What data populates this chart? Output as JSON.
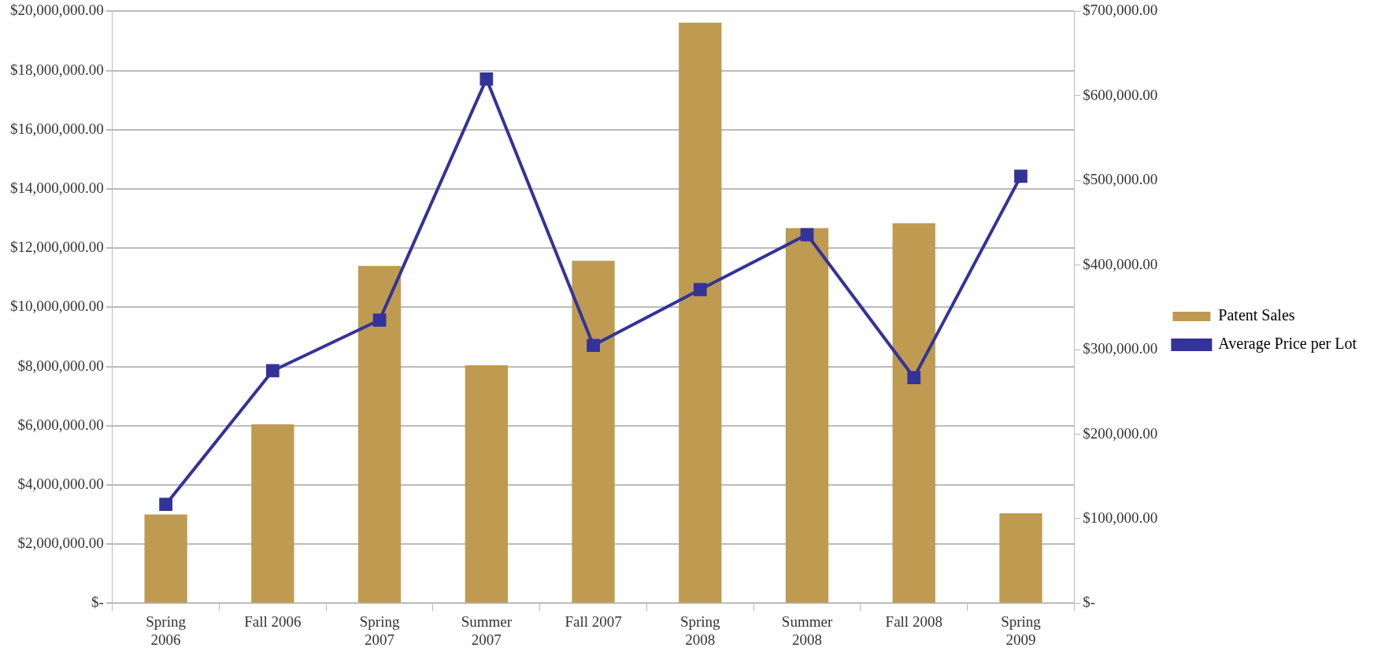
{
  "chart_data": {
    "type": "bar",
    "categories": [
      "Spring 2006",
      "Fall 2006",
      "Spring 2007",
      "Summer 2007",
      "Fall 2007",
      "Spring 2008",
      "Summer 2008",
      "Fall 2008",
      "Spring 2009"
    ],
    "series": [
      {
        "name": "Patent Sales",
        "color": "#be9b51",
        "values": [
          3000000,
          6050000,
          11400000,
          8040000,
          11570000,
          19620000,
          12680000,
          12840000,
          3040000
        ]
      },
      {
        "name": "Average Price per Lot",
        "type": "line",
        "axis": "y2",
        "color": "#333399",
        "marker": "square",
        "values": [
          117000,
          275000,
          335000,
          620000,
          305000,
          371000,
          436000,
          267000,
          505000
        ]
      }
    ],
    "ylim": [
      0,
      20000000
    ],
    "yticks": [
      {
        "value": 0,
        "label": "$-"
      },
      {
        "value": 2000000,
        "label": "$2,000,000.00"
      },
      {
        "value": 4000000,
        "label": "$4,000,000.00"
      },
      {
        "value": 6000000,
        "label": "$6,000,000.00"
      },
      {
        "value": 8000000,
        "label": "$8,000,000.00"
      },
      {
        "value": 10000000,
        "label": "$10,000,000.00"
      },
      {
        "value": 12000000,
        "label": "$12,000,000.00"
      },
      {
        "value": 14000000,
        "label": "$14,000,000.00"
      },
      {
        "value": 16000000,
        "label": "$16,000,000.00"
      },
      {
        "value": 18000000,
        "label": "$18,000,000.00"
      },
      {
        "value": 20000000,
        "label": "$20,000,000.00"
      }
    ],
    "y2lim": [
      0,
      700000
    ],
    "y2ticks": [
      {
        "value": 0,
        "label": "$-"
      },
      {
        "value": 100000,
        "label": "$100,000.00"
      },
      {
        "value": 200000,
        "label": "$200,000.00"
      },
      {
        "value": 300000,
        "label": "$300,000.00"
      },
      {
        "value": 400000,
        "label": "$400,000.00"
      },
      {
        "value": 500000,
        "label": "$500,000.00"
      },
      {
        "value": 600000,
        "label": "$600,000.00"
      },
      {
        "value": 700000,
        "label": "$700,000.00"
      }
    ],
    "grid": "y",
    "legend": "right",
    "line_style": "solid"
  }
}
